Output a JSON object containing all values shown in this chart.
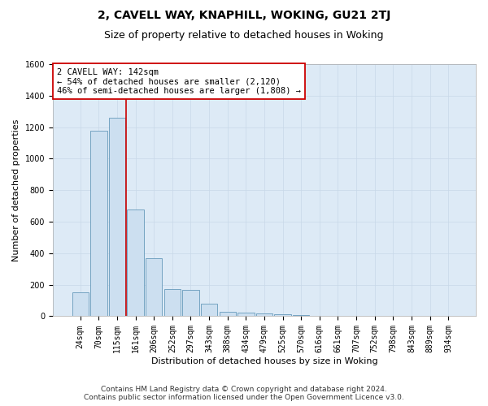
{
  "title": "2, CAVELL WAY, KNAPHILL, WOKING, GU21 2TJ",
  "subtitle": "Size of property relative to detached houses in Woking",
  "xlabel": "Distribution of detached houses by size in Woking",
  "ylabel": "Number of detached properties",
  "bar_color": "#ccdff0",
  "bar_edge_color": "#6699bb",
  "grid_color": "#c8d8e8",
  "bg_color": "#ddeaf6",
  "categories": [
    "24sqm",
    "70sqm",
    "115sqm",
    "161sqm",
    "206sqm",
    "252sqm",
    "297sqm",
    "343sqm",
    "388sqm",
    "434sqm",
    "479sqm",
    "525sqm",
    "570sqm",
    "616sqm",
    "661sqm",
    "707sqm",
    "752sqm",
    "798sqm",
    "843sqm",
    "889sqm",
    "934sqm"
  ],
  "values": [
    150,
    1175,
    1260,
    680,
    370,
    170,
    165,
    80,
    30,
    25,
    20,
    15,
    10,
    0,
    0,
    0,
    0,
    0,
    0,
    0,
    0
  ],
  "property_line_x": 2.48,
  "property_line_color": "#cc0000",
  "annotation_text": "2 CAVELL WAY: 142sqm\n← 54% of detached houses are smaller (2,120)\n46% of semi-detached houses are larger (1,808) →",
  "annotation_box_facecolor": "#ffffff",
  "annotation_box_edgecolor": "#cc0000",
  "ylim": [
    0,
    1600
  ],
  "yticks": [
    0,
    200,
    400,
    600,
    800,
    1000,
    1200,
    1400,
    1600
  ],
  "footer_text": "Contains HM Land Registry data © Crown copyright and database right 2024.\nContains public sector information licensed under the Open Government Licence v3.0.",
  "title_fontsize": 10,
  "subtitle_fontsize": 9,
  "axis_label_fontsize": 8,
  "tick_fontsize": 7,
  "annotation_fontsize": 7.5,
  "footer_fontsize": 6.5
}
